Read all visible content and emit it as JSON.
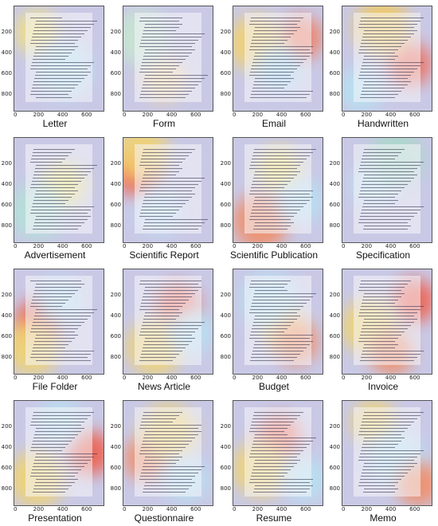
{
  "panels": [
    {
      "title": "Letter",
      "heat": [
        [
          "#f4e27a",
          0.25,
          0.25
        ],
        [
          "#b6e3f2",
          0.55,
          0.6
        ]
      ]
    },
    {
      "title": "Form",
      "heat": [
        [
          "#f7d7a0",
          0.45,
          0.7
        ],
        [
          "#c7e6d0",
          0.2,
          0.3
        ]
      ]
    },
    {
      "title": "Email",
      "heat": [
        [
          "#f37a5a",
          0.75,
          0.3
        ],
        [
          "#f4d26a",
          0.25,
          0.35
        ],
        [
          "#9fd8f1",
          0.5,
          0.6
        ]
      ]
    },
    {
      "title": "Handwritten",
      "heat": [
        [
          "#f06a55",
          0.75,
          0.55
        ],
        [
          "#f2c95a",
          0.45,
          0.2
        ],
        [
          "#b6e3f2",
          0.2,
          0.8
        ]
      ]
    },
    {
      "title": "Advertisement",
      "heat": [
        [
          "#ede374",
          0.55,
          0.45
        ],
        [
          "#b2e2d7",
          0.25,
          0.7
        ]
      ]
    },
    {
      "title": "Scientific Report",
      "heat": [
        [
          "#f25e4c",
          0.15,
          0.35
        ],
        [
          "#f3d46a",
          0.2,
          0.15
        ],
        [
          "#bfe3f4",
          0.4,
          0.7
        ]
      ]
    },
    {
      "title": "Scientific Publication",
      "heat": [
        [
          "#f3e06e",
          0.5,
          0.3
        ],
        [
          "#f38a60",
          0.3,
          0.8
        ],
        [
          "#b6e3f2",
          0.75,
          0.6
        ]
      ]
    },
    {
      "title": "Specification",
      "heat": [
        [
          "#bde4f2",
          0.35,
          0.45
        ],
        [
          "#a7d9c7",
          0.6,
          0.2
        ]
      ]
    },
    {
      "title": "File Folder",
      "heat": [
        [
          "#f05a45",
          0.25,
          0.5
        ],
        [
          "#f3d46a",
          0.2,
          0.75
        ],
        [
          "#b6e3f2",
          0.5,
          0.3
        ]
      ]
    },
    {
      "title": "News Article",
      "heat": [
        [
          "#f36a55",
          0.6,
          0.35
        ],
        [
          "#f3d46a",
          0.35,
          0.75
        ],
        [
          "#b6e3f2",
          0.75,
          0.6
        ]
      ]
    },
    {
      "title": "Budget",
      "heat": [
        [
          "#f3d46a",
          0.55,
          0.55
        ],
        [
          "#b6e3f2",
          0.4,
          0.3
        ],
        [
          "#f38a60",
          0.7,
          0.7
        ]
      ]
    },
    {
      "title": "Invoice",
      "heat": [
        [
          "#f05a45",
          0.8,
          0.3
        ],
        [
          "#f3d46a",
          0.3,
          0.55
        ],
        [
          "#f38a60",
          0.55,
          0.8
        ]
      ]
    },
    {
      "title": "Presentation",
      "heat": [
        [
          "#f05a45",
          0.85,
          0.5
        ],
        [
          "#f3d46a",
          0.25,
          0.75
        ],
        [
          "#b6e3f2",
          0.5,
          0.2
        ]
      ]
    },
    {
      "title": "Questionnaire",
      "heat": [
        [
          "#f38a60",
          0.25,
          0.55
        ],
        [
          "#f3d46a",
          0.5,
          0.3
        ],
        [
          "#b6e3f2",
          0.7,
          0.75
        ]
      ]
    },
    {
      "title": "Resume",
      "heat": [
        [
          "#f36a55",
          0.5,
          0.35
        ],
        [
          "#f3d46a",
          0.3,
          0.65
        ],
        [
          "#b6e3f2",
          0.8,
          0.75
        ]
      ]
    },
    {
      "title": "Memo",
      "heat": [
        [
          "#f3d46a",
          0.35,
          0.2
        ],
        [
          "#b6e3f2",
          0.6,
          0.55
        ],
        [
          "#f38a60",
          0.85,
          0.8
        ]
      ]
    }
  ],
  "yticks": [
    "200",
    "400",
    "600",
    "800"
  ],
  "xticks": [
    "0",
    "200",
    "400",
    "600"
  ]
}
